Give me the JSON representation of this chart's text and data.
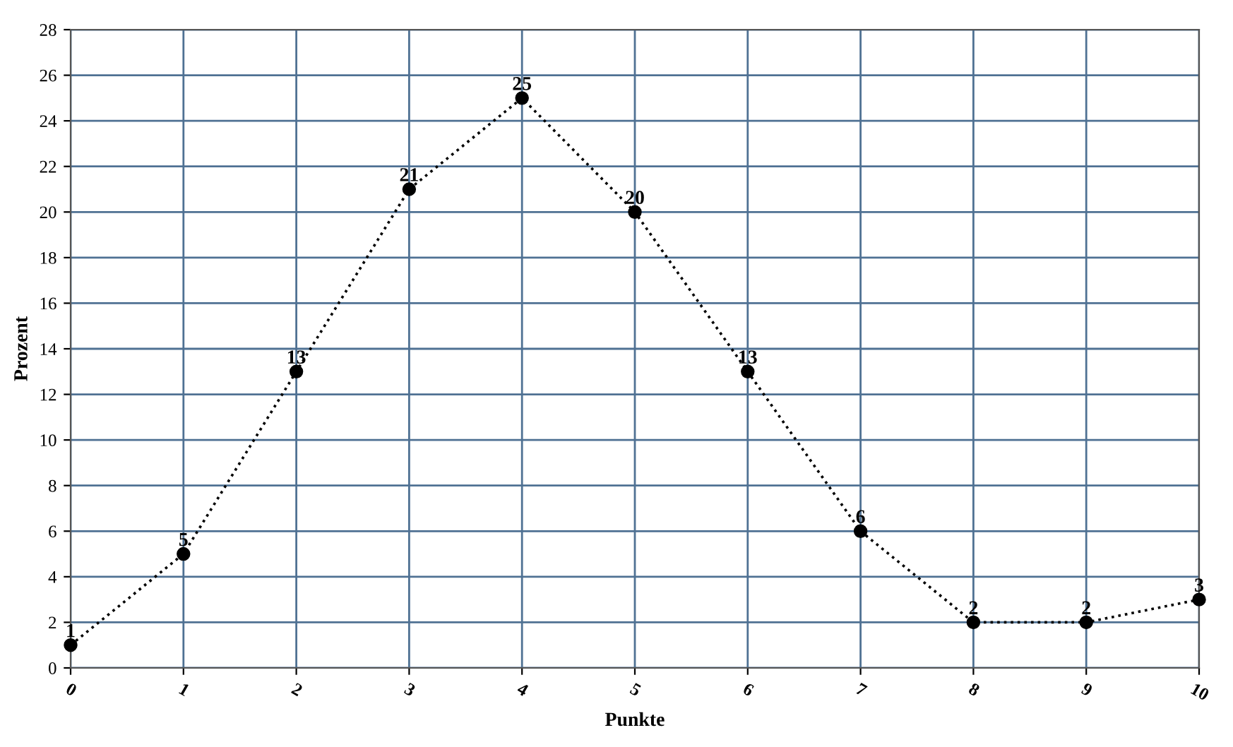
{
  "chart_data": {
    "type": "line",
    "xlabel": "Punkte",
    "ylabel": "Prozent",
    "x": [
      0,
      1,
      2,
      3,
      4,
      5,
      6,
      7,
      8,
      9,
      10
    ],
    "series": [
      {
        "color": "#000000",
        "values": [
          1,
          5,
          13,
          21,
          25,
          20,
          13,
          6,
          2,
          2,
          3
        ]
      }
    ],
    "xlim": [
      0,
      10
    ],
    "xticks": [
      0,
      1,
      2,
      3,
      4,
      5,
      6,
      7,
      8,
      9,
      10
    ],
    "ylim": [
      0,
      28
    ],
    "yticks": [
      0,
      2,
      4,
      6,
      8,
      10,
      12,
      14,
      16,
      18,
      20,
      22,
      24,
      26,
      28
    ],
    "grid": true,
    "marker": "circle",
    "line_style": "dotted",
    "data_labels": true,
    "legend": false
  }
}
